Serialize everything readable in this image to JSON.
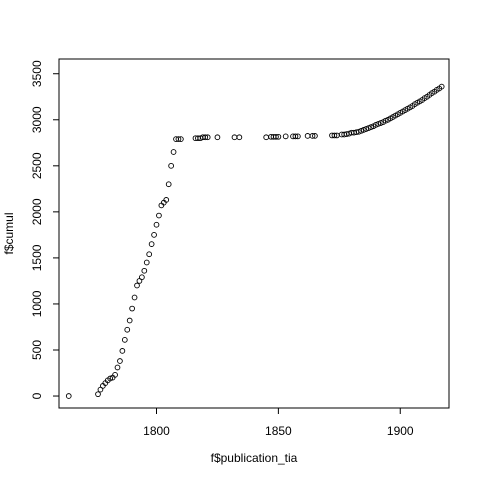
{
  "chart_data": {
    "type": "scatter",
    "title": "",
    "xlabel": "f$publication_tia",
    "ylabel": "f$cumul",
    "xlim": [
      1760,
      1920
    ],
    "ylim": [
      -130,
      3660
    ],
    "xticks": [
      1800,
      1850,
      1900
    ],
    "yticks": [
      0,
      500,
      1000,
      1500,
      2000,
      2500,
      3000,
      3500
    ],
    "grid": false,
    "legend": "none",
    "marker": "open-circle",
    "x": [
      1764,
      1776,
      1777,
      1778,
      1779,
      1780,
      1781,
      1782,
      1783,
      1784,
      1785,
      1786,
      1787,
      1788,
      1789,
      1790,
      1791,
      1792,
      1793,
      1794,
      1795,
      1796,
      1797,
      1798,
      1799,
      1800,
      1801,
      1802,
      1803,
      1804,
      1805,
      1806,
      1807,
      1808,
      1809,
      1810,
      1816,
      1817,
      1818,
      1819,
      1820,
      1821,
      1825,
      1832,
      1834,
      1845,
      1847,
      1848,
      1849,
      1850,
      1853,
      1856,
      1857,
      1858,
      1862,
      1864,
      1865,
      1872,
      1873,
      1874,
      1876,
      1877,
      1878,
      1879,
      1880,
      1881,
      1882,
      1883,
      1884,
      1885,
      1886,
      1887,
      1888,
      1889,
      1890,
      1891,
      1892,
      1893,
      1894,
      1895,
      1896,
      1897,
      1898,
      1899,
      1900,
      1901,
      1902,
      1903,
      1904,
      1905,
      1906,
      1907,
      1908,
      1909,
      1910,
      1911,
      1912,
      1913,
      1914,
      1915,
      1916,
      1917
    ],
    "y": [
      0,
      20,
      70,
      110,
      140,
      170,
      190,
      200,
      230,
      310,
      380,
      490,
      610,
      720,
      820,
      950,
      1070,
      1200,
      1250,
      1290,
      1360,
      1450,
      1540,
      1650,
      1750,
      1860,
      1960,
      2070,
      2100,
      2130,
      2300,
      2500,
      2650,
      2790,
      2790,
      2790,
      2800,
      2800,
      2800,
      2810,
      2810,
      2810,
      2810,
      2810,
      2810,
      2810,
      2815,
      2815,
      2815,
      2815,
      2820,
      2820,
      2820,
      2820,
      2825,
      2825,
      2825,
      2830,
      2830,
      2830,
      2840,
      2840,
      2845,
      2850,
      2860,
      2860,
      2865,
      2870,
      2880,
      2890,
      2900,
      2910,
      2920,
      2930,
      2945,
      2955,
      2965,
      2975,
      2990,
      3000,
      3015,
      3030,
      3045,
      3060,
      3075,
      3090,
      3105,
      3120,
      3135,
      3150,
      3170,
      3185,
      3200,
      3215,
      3235,
      3250,
      3270,
      3290,
      3305,
      3325,
      3340,
      3360
    ]
  }
}
